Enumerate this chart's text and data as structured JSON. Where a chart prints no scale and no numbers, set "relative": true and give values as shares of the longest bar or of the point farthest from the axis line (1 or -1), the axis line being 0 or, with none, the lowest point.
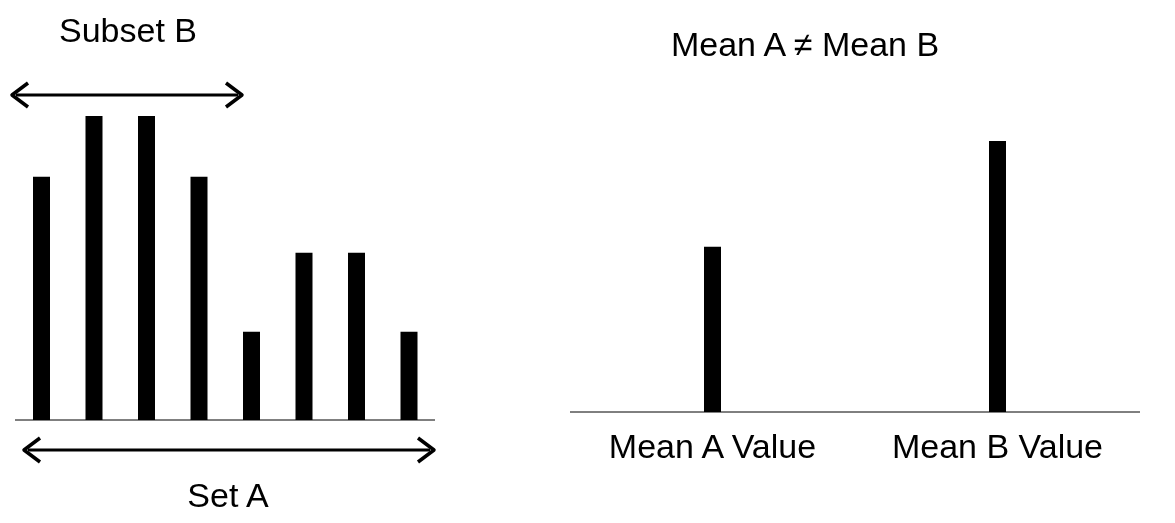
{
  "chart_data": [
    {
      "type": "bar",
      "relative": true,
      "categories": [
        null,
        null,
        null,
        null,
        null,
        null,
        null,
        null
      ],
      "values": [
        0.8,
        1,
        1,
        0.8,
        0.29,
        0.55,
        0.55,
        0.29
      ],
      "color": "#000000",
      "annotations": [
        "Subset B",
        "Set A"
      ]
    },
    {
      "type": "bar",
      "relative": true,
      "title": "Mean A ≠ Mean B",
      "categories": [
        "Mean A Value",
        "Mean B Value"
      ],
      "values": [
        0.61,
        1
      ],
      "color": "#000000"
    }
  ]
}
